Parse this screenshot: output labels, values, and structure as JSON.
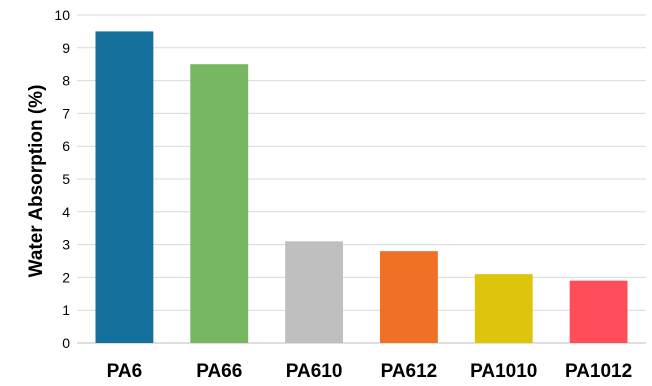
{
  "chart_data": {
    "type": "bar",
    "title": "",
    "xlabel": "",
    "ylabel": "Water Absorption (%)",
    "ylim": [
      0,
      10
    ],
    "yticks": [
      0,
      1,
      2,
      3,
      4,
      5,
      6,
      7,
      8,
      9,
      10
    ],
    "grid": true,
    "categories": [
      "PA6",
      "PA66",
      "PA610",
      "PA612",
      "PA1010",
      "PA1012"
    ],
    "values": [
      9.5,
      8.5,
      3.1,
      2.8,
      2.1,
      1.9
    ],
    "colors": [
      "#13719c",
      "#78b762",
      "#bfbfbf",
      "#f07026",
      "#dcc50c",
      "#ff4d5a"
    ]
  }
}
